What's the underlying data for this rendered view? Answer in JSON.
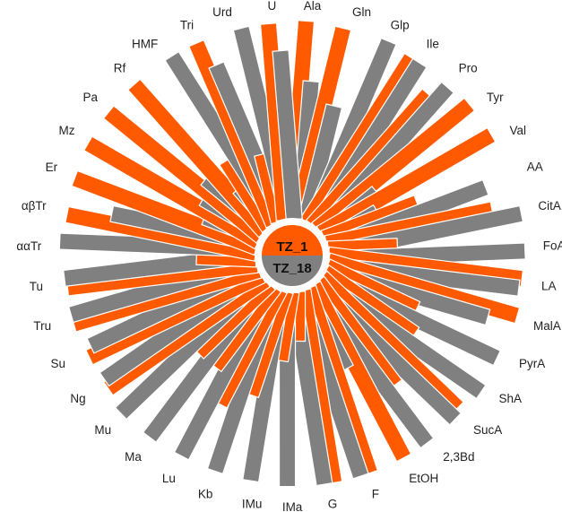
{
  "chart_data": {
    "type": "radial-bar",
    "center_labels": {
      "top": "TZ_1",
      "bottom": "TZ_18"
    },
    "colors": {
      "TZ_1": "#ff5a00",
      "TZ_18": "#808080",
      "center_top": "#ff5a00",
      "center_bottom": "#808080"
    },
    "categories": [
      "Ala",
      "Gln",
      "Glp",
      "Ile",
      "Pro",
      "Tyr",
      "Val",
      "AA",
      "CitA",
      "FoA",
      "LA",
      "MalA",
      "PyrA",
      "ShA",
      "SucA",
      "2,3Bd",
      "EtOH",
      "F",
      "G",
      "IMa",
      "IMu",
      "Kb",
      "Lu",
      "Ma",
      "Mu",
      "Ng",
      "Su",
      "Tru",
      "Tu",
      "ααTr",
      "αβTr",
      "Er",
      "Mz",
      "Pa",
      "Rf",
      "HMF",
      "Tri",
      "Urd",
      "U"
    ],
    "series": [
      {
        "name": "TZ_1",
        "values": [
          1.0,
          0.99,
          0.0,
          0.98,
          0.88,
          0.99,
          0.99,
          0.5,
          0.85,
          0.35,
          0.98,
          0.99,
          0.5,
          0.55,
          0.95,
          0.65,
          0.98,
          0.98,
          0.98,
          0.25,
          0.35,
          0.55,
          0.65,
          0.5,
          0.5,
          0.96,
          0.96,
          0.97,
          0.96,
          0.3,
          0.97,
          0.98,
          0.99,
          0.99,
          0.99,
          0.4,
          0.99,
          0.35,
          0.99
        ]
      },
      {
        "name": "TZ_18",
        "values": [
          0.7,
          0.6,
          1.0,
          0.98,
          0.97,
          0.35,
          0.3,
          0.85,
          0.99,
          0.99,
          0.97,
          0.85,
          0.97,
          0.99,
          0.98,
          0.98,
          0.45,
          0.98,
          0.98,
          0.98,
          0.97,
          0.97,
          0.97,
          0.98,
          0.99,
          0.95,
          0.93,
          0.97,
          0.97,
          0.99,
          0.75,
          0.3,
          0.35,
          0.4,
          0.25,
          0.99,
          0.85,
          0.99,
          0.85
        ]
      }
    ]
  }
}
